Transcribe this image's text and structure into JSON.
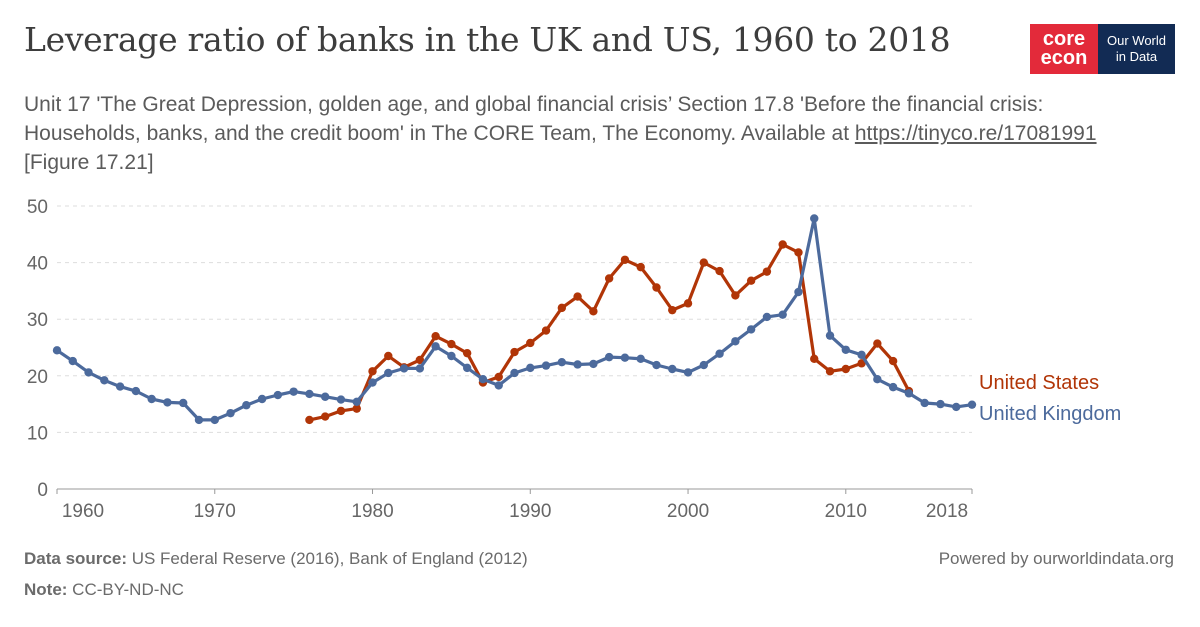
{
  "header": {
    "title": "Leverage ratio of banks in the UK and US, 1960 to 2018",
    "subtitle_text": "Unit 17 'The Great Depression, golden age, and global financial crisis’ Section 17.8 'Before the financial crisis: Households, banks, and the credit boom' in The CORE Team, The Economy. Available at ",
    "subtitle_link": "https://tinyco.re/17081991",
    "subtitle_suffix": " [Figure 17.21]"
  },
  "logo": {
    "core_line1": "core",
    "core_line2": "econ",
    "owid_line1": "Our World",
    "owid_line2": "in Data"
  },
  "footer": {
    "source_label": "Data source:",
    "source_text": " US Federal Reserve (2016), Bank of England (2012)",
    "note_label": "Note:",
    "note_text": " CC-BY-ND-NC",
    "powered": "Powered by ourworldindata.org"
  },
  "colors": {
    "us": "#b13507",
    "uk": "#4c6a9c",
    "grid": "#dddddd",
    "axis": "#666666"
  },
  "chart_data": {
    "type": "line",
    "title": "Leverage ratio of banks in the UK and US, 1960 to 2018",
    "xlim": [
      1960,
      2018
    ],
    "ylim": [
      0,
      50
    ],
    "x_ticks": [
      "1960",
      "1970",
      "1980",
      "1990",
      "2000",
      "2010",
      "2018"
    ],
    "y_ticks": [
      "0",
      "10",
      "20",
      "30",
      "40",
      "50"
    ],
    "grid": "horizontal dashed",
    "legend": "right, labels at line ends",
    "series": [
      {
        "name": "United States",
        "color": "#b13507",
        "x": [
          1976,
          1977,
          1978,
          1979,
          1980,
          1981,
          1982,
          1983,
          1984,
          1985,
          1986,
          1987,
          1988,
          1989,
          1990,
          1991,
          1992,
          1993,
          1994,
          1995,
          1996,
          1997,
          1998,
          1999,
          2000,
          2001,
          2002,
          2003,
          2004,
          2005,
          2006,
          2007,
          2008,
          2009,
          2010,
          2011,
          2012,
          2013,
          2014
        ],
        "y": [
          12.2,
          12.8,
          13.8,
          14.2,
          20.8,
          23.5,
          21.5,
          22.8,
          27,
          25.6,
          24,
          18.8,
          19.8,
          24.2,
          25.8,
          28,
          32,
          34,
          31.4,
          37.2,
          40.5,
          39.2,
          35.6,
          31.6,
          32.8,
          40,
          38.5,
          34.2,
          36.8,
          38.4,
          43.2,
          41.8,
          23,
          20.8,
          21.2,
          22.2,
          25.7,
          22.6,
          17.3
        ]
      },
      {
        "name": "United Kingdom",
        "color": "#4c6a9c",
        "x": [
          1960,
          1961,
          1962,
          1963,
          1964,
          1965,
          1966,
          1967,
          1968,
          1969,
          1970,
          1971,
          1972,
          1973,
          1974,
          1975,
          1976,
          1977,
          1978,
          1979,
          1980,
          1981,
          1982,
          1983,
          1984,
          1985,
          1986,
          1987,
          1988,
          1989,
          1990,
          1991,
          1992,
          1993,
          1994,
          1995,
          1996,
          1997,
          1998,
          1999,
          2000,
          2001,
          2002,
          2003,
          2004,
          2005,
          2006,
          2007,
          2008,
          2009,
          2010,
          2011,
          2012,
          2013,
          2014,
          2015,
          2016,
          2017,
          2018
        ],
        "y": [
          24.5,
          22.6,
          20.6,
          19.2,
          18.1,
          17.3,
          15.9,
          15.3,
          15.2,
          12.2,
          12.2,
          13.4,
          14.8,
          15.9,
          16.6,
          17.2,
          16.8,
          16.3,
          15.8,
          15.4,
          18.8,
          20.5,
          21.3,
          21.3,
          25.2,
          23.5,
          21.4,
          19.4,
          18.3,
          20.5,
          21.4,
          21.8,
          22.4,
          22,
          22.1,
          23.3,
          23.2,
          23,
          21.9,
          21.2,
          20.6,
          21.9,
          23.9,
          26.1,
          28.2,
          30.4,
          30.8,
          34.8,
          47.8,
          27.1,
          24.6,
          23.7,
          19.4,
          18,
          16.9,
          15.2,
          15,
          14.5,
          14.9
        ]
      }
    ]
  }
}
